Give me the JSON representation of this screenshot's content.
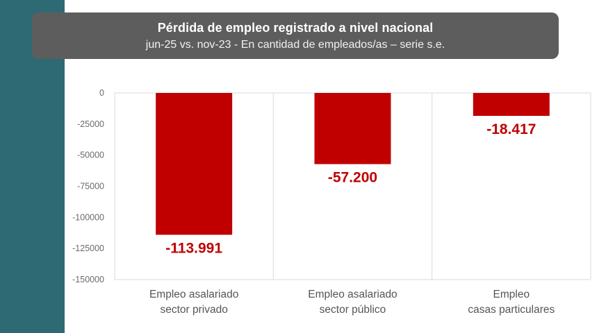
{
  "header": {
    "title": "Pérdida de empleo registrado a nivel nacional",
    "subtitle": "jun-25 vs. nov-23 - En cantidad de empleados/as – serie s.e."
  },
  "colors": {
    "side_band": "#2e6a74",
    "title_box": "#5d5d5d",
    "bar": "#c00000",
    "data_label": "#c00000",
    "grid": "#d9d9d9"
  },
  "chart_data": {
    "type": "bar",
    "title": "Pérdida de empleo registrado a nivel nacional",
    "subtitle": "jun-25 vs. nov-23 - En cantidad de empleados/as – serie s.e.",
    "categories": [
      [
        "Empleo asalariado",
        "sector privado"
      ],
      [
        "Empleo asalariado",
        "sector público"
      ],
      [
        "Empleo",
        "casas particulares"
      ]
    ],
    "values": [
      -113991,
      -57200,
      -18417
    ],
    "data_labels": [
      "-113.991",
      "-57.200",
      "-18.417"
    ],
    "ylim": [
      -150000,
      0
    ],
    "yticks": [
      0,
      -25000,
      -50000,
      -75000,
      -100000,
      -125000,
      -150000
    ],
    "ytick_labels": [
      "0",
      "-25000",
      "-50000",
      "-75000",
      "-100000",
      "-125000",
      "-150000"
    ],
    "xlabel": "",
    "ylabel": "",
    "grid": true,
    "legend": "none"
  }
}
